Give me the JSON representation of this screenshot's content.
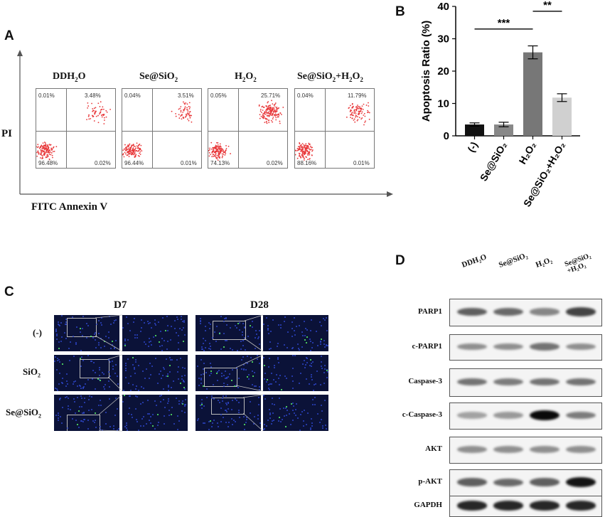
{
  "panel_a": {
    "letter": "A",
    "y_axis_label": "PI",
    "x_axis_label": "FITC Annexin V",
    "plots": [
      {
        "title": "DDH",
        "title_sub": "2",
        "title_tail": "O",
        "ul": "0.01%",
        "ur": "3.48%",
        "ll": "96.48%",
        "lr": "0.02%"
      },
      {
        "title": "Se@SiO",
        "title_sub": "2",
        "title_tail": "",
        "ul": "0.04%",
        "ur": "3.51%",
        "ll": "96.44%",
        "lr": "0.01%"
      },
      {
        "title": "H",
        "title_sub": "2",
        "title_tail": "O",
        "title_sub2": "2",
        "ul": "0.05%",
        "ur": "25.71%",
        "ll": "74.13%",
        "lr": "0.02%"
      },
      {
        "title": "Se@SiO",
        "title_sub": "2",
        "title_tail": "+H",
        "title_sub2": "2",
        "title_tail2": "O",
        "title_sub3": "2",
        "ul": "0.04%",
        "ur": "11.79%",
        "ll": "88.16%",
        "lr": "0.01%"
      }
    ],
    "point_color": "#e8383a"
  },
  "panel_b": {
    "letter": "B",
    "significance": [
      "***",
      "**"
    ]
  },
  "chart_data": {
    "type": "bar",
    "categories": [
      "(-)",
      "Se@SiO₂",
      "H₂O₂",
      "Se@SiO₂+H₂O₂"
    ],
    "values": [
      3.5,
      3.5,
      25.8,
      11.8
    ],
    "errors": [
      0.5,
      0.7,
      2.0,
      1.2
    ],
    "bar_colors": [
      "#111111",
      "#888888",
      "#777777",
      "#d0d0d0"
    ],
    "ylabel": "Apoptosis Ratio (%)",
    "ylim": [
      0,
      40
    ],
    "yticks": [
      0,
      10,
      20,
      30,
      40
    ],
    "xlabel": "",
    "title": ""
  },
  "panel_c": {
    "letter": "C",
    "columns": [
      "D7",
      "D28"
    ],
    "rows": [
      {
        "label": "(-)",
        "sub": "",
        "prefix": ""
      },
      {
        "label": "SiO",
        "sub": "2",
        "prefix": ""
      },
      {
        "label": "Se@SiO",
        "sub": "2",
        "prefix": ""
      }
    ]
  },
  "panel_d": {
    "letter": "D",
    "columns": [
      "DDH₂O",
      "Se@SiO₂",
      "H₂O₂",
      "Se@SiO₂ +H₂O₂"
    ],
    "rows": [
      {
        "label": "PARP1",
        "intensity": [
          0.55,
          0.5,
          0.35,
          0.7
        ]
      },
      {
        "label": "c-PARP1",
        "intensity": [
          0.3,
          0.3,
          0.45,
          0.3
        ]
      },
      {
        "label": "Caspase-3",
        "intensity": [
          0.45,
          0.4,
          0.45,
          0.45
        ]
      },
      {
        "label": "c-Caspase-3",
        "intensity": [
          0.2,
          0.25,
          1.0,
          0.4
        ]
      },
      {
        "label": "AKT",
        "intensity": [
          0.3,
          0.3,
          0.3,
          0.3
        ]
      },
      {
        "label": "p-AKT",
        "intensity": [
          0.55,
          0.5,
          0.55,
          0.95
        ]
      },
      {
        "label": "GAPDH",
        "intensity": [
          0.85,
          0.85,
          0.85,
          0.85
        ]
      }
    ]
  }
}
